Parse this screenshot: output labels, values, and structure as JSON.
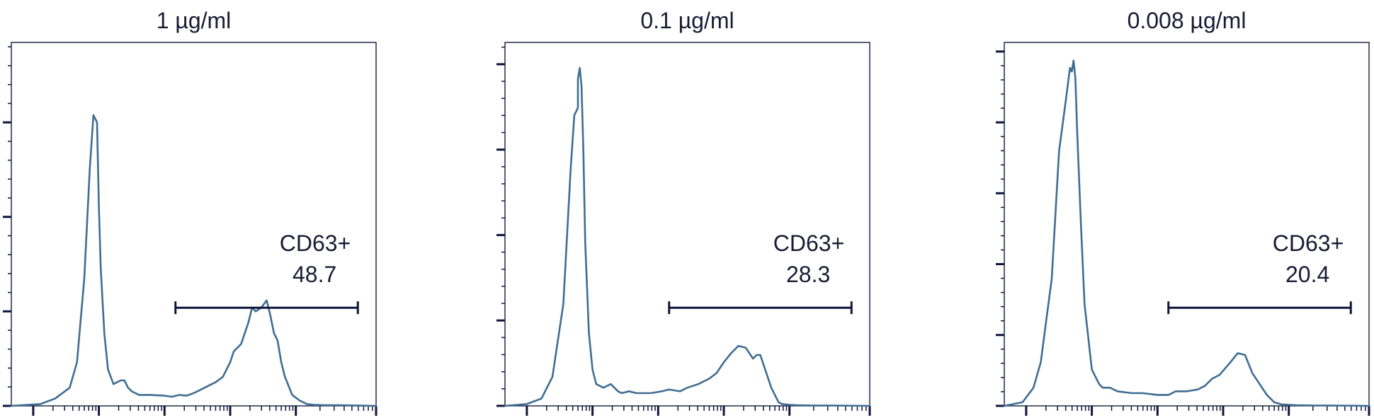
{
  "colors": {
    "curve": "#3f6d92",
    "axis": "#10163a",
    "text": "#1a1a33"
  },
  "chart_data": [
    {
      "type": "area",
      "title": "1 µg/ml",
      "xlabel": "",
      "ylabel": "",
      "x_scale": "log",
      "xlim": [
        0,
        1
      ],
      "ylim": [
        0,
        1
      ],
      "grid": false,
      "gate": {
        "label": "CD63+",
        "value": "48.7",
        "x_range": [
          0.45,
          0.95
        ],
        "y_level": 0.27
      },
      "series": [
        {
          "x": [
            0.0,
            0.08,
            0.12,
            0.16,
            0.18,
            0.2,
            0.215,
            0.225,
            0.235,
            0.24,
            0.245,
            0.255,
            0.265,
            0.28,
            0.3,
            0.31,
            0.32,
            0.33,
            0.34,
            0.35,
            0.38,
            0.42,
            0.44,
            0.46,
            0.48,
            0.5,
            0.52,
            0.54,
            0.56,
            0.58,
            0.6,
            0.61,
            0.63,
            0.65,
            0.66,
            0.67,
            0.685,
            0.7,
            0.71,
            0.72,
            0.73,
            0.74,
            0.75,
            0.77,
            0.79,
            0.81,
            0.83,
            0.86,
            0.9,
            0.95,
            1.0
          ],
          "y": [
            0.0,
            0.005,
            0.02,
            0.05,
            0.12,
            0.35,
            0.65,
            0.8,
            0.78,
            0.55,
            0.38,
            0.2,
            0.1,
            0.06,
            0.07,
            0.07,
            0.05,
            0.04,
            0.035,
            0.03,
            0.03,
            0.028,
            0.025,
            0.03,
            0.028,
            0.035,
            0.045,
            0.055,
            0.065,
            0.08,
            0.12,
            0.15,
            0.17,
            0.23,
            0.27,
            0.26,
            0.27,
            0.29,
            0.25,
            0.2,
            0.18,
            0.12,
            0.08,
            0.03,
            0.015,
            0.005,
            0.003,
            0.002,
            0.002,
            0.001,
            0.0
          ]
        }
      ]
    },
    {
      "type": "area",
      "title": "0.1 µg/ml",
      "xlabel": "",
      "ylabel": "",
      "x_scale": "log",
      "xlim": [
        0,
        1
      ],
      "ylim": [
        0,
        1
      ],
      "grid": false,
      "gate": {
        "label": "CD63+",
        "value": "28.3",
        "x_range": [
          0.45,
          0.95
        ],
        "y_level": 0.27
      },
      "series": [
        {
          "x": [
            0.0,
            0.06,
            0.1,
            0.13,
            0.16,
            0.18,
            0.19,
            0.2,
            0.2,
            0.205,
            0.21,
            0.215,
            0.22,
            0.23,
            0.24,
            0.25,
            0.27,
            0.29,
            0.31,
            0.32,
            0.34,
            0.36,
            0.4,
            0.43,
            0.45,
            0.48,
            0.5,
            0.53,
            0.56,
            0.58,
            0.6,
            0.62,
            0.64,
            0.66,
            0.68,
            0.69,
            0.7,
            0.72,
            0.73,
            0.74,
            0.75,
            0.76,
            0.78,
            0.8,
            0.84,
            0.9,
            1.0
          ],
          "y": [
            0.0,
            0.005,
            0.02,
            0.08,
            0.28,
            0.65,
            0.8,
            0.82,
            0.9,
            0.93,
            0.88,
            0.7,
            0.45,
            0.2,
            0.1,
            0.06,
            0.05,
            0.06,
            0.04,
            0.035,
            0.04,
            0.035,
            0.035,
            0.04,
            0.045,
            0.04,
            0.05,
            0.06,
            0.075,
            0.09,
            0.12,
            0.145,
            0.165,
            0.16,
            0.13,
            0.14,
            0.14,
            0.08,
            0.05,
            0.03,
            0.01,
            0.005,
            0.003,
            0.002,
            0.001,
            0.001,
            0.0
          ]
        }
      ]
    },
    {
      "type": "area",
      "title": "0.008 µg/ml",
      "xlabel": "",
      "ylabel": "",
      "x_scale": "log",
      "xlim": [
        0,
        1
      ],
      "ylim": [
        0,
        1
      ],
      "grid": false,
      "gate": {
        "label": "CD63+",
        "value": "20.4",
        "x_range": [
          0.45,
          0.95
        ],
        "y_level": 0.27
      },
      "series": [
        {
          "x": [
            0.0,
            0.05,
            0.08,
            0.1,
            0.13,
            0.15,
            0.17,
            0.18,
            0.185,
            0.19,
            0.195,
            0.2,
            0.21,
            0.22,
            0.24,
            0.26,
            0.27,
            0.29,
            0.31,
            0.35,
            0.38,
            0.42,
            0.45,
            0.47,
            0.5,
            0.53,
            0.55,
            0.57,
            0.59,
            0.62,
            0.64,
            0.66,
            0.68,
            0.7,
            0.72,
            0.74,
            0.76,
            0.8,
            0.85,
            0.9,
            1.0
          ],
          "y": [
            0.0,
            0.01,
            0.05,
            0.12,
            0.35,
            0.7,
            0.85,
            0.93,
            0.92,
            0.95,
            0.9,
            0.75,
            0.5,
            0.28,
            0.1,
            0.06,
            0.05,
            0.05,
            0.04,
            0.035,
            0.035,
            0.03,
            0.03,
            0.04,
            0.04,
            0.045,
            0.055,
            0.075,
            0.085,
            0.12,
            0.145,
            0.14,
            0.09,
            0.06,
            0.03,
            0.01,
            0.004,
            0.002,
            0.001,
            0.001,
            0.0
          ]
        }
      ]
    }
  ]
}
